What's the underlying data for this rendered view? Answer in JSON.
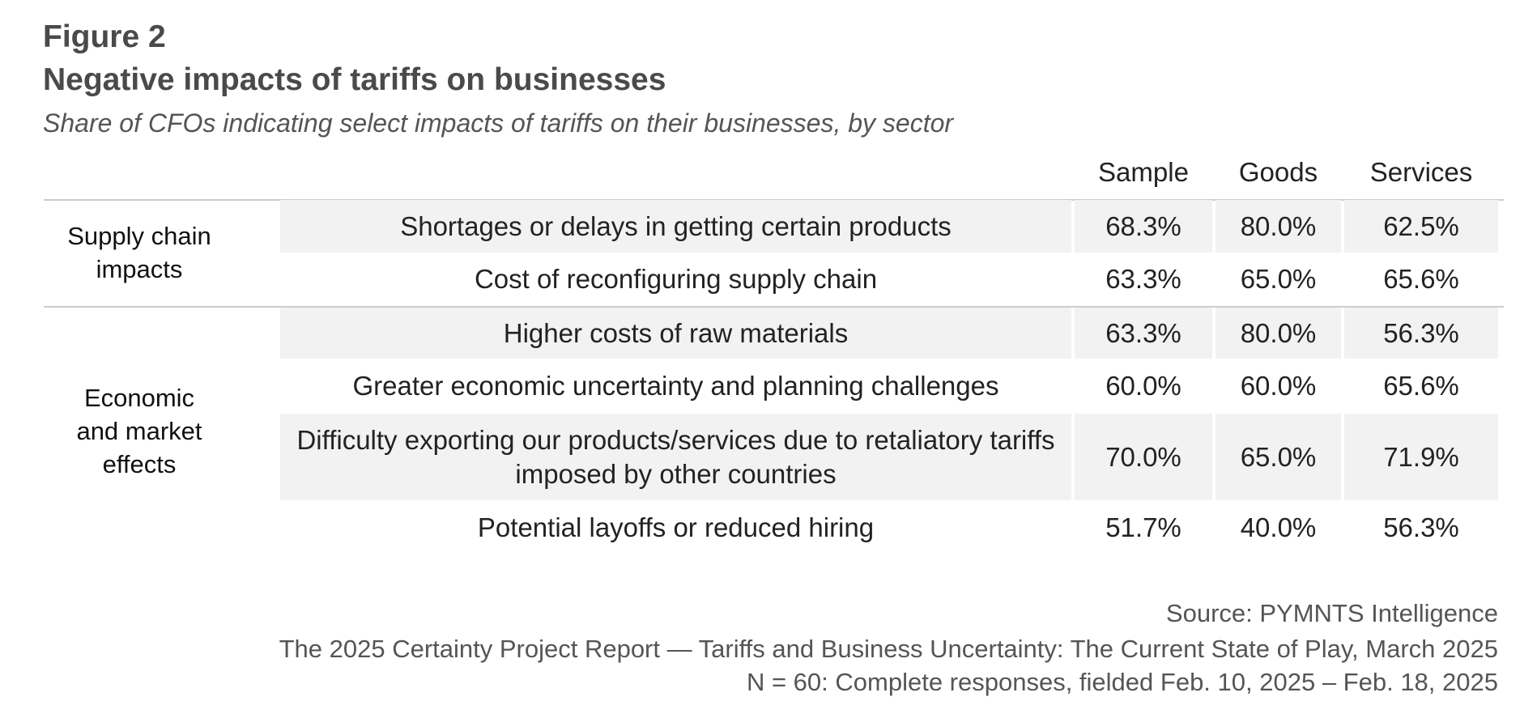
{
  "figure_label": "Figure 2",
  "chart_data": {
    "type": "table",
    "title": "Negative impacts of tariffs on businesses",
    "subtitle": "Share of CFOs indicating select impacts of tariffs on their businesses, by sector",
    "columns": [
      "Sample",
      "Goods",
      "Services"
    ],
    "groups": [
      {
        "label": "Supply chain impacts",
        "rows": [
          {
            "label": "Shortages or delays in getting certain products",
            "values": [
              "68.3%",
              "80.0%",
              "62.5%"
            ]
          },
          {
            "label": "Cost of reconfiguring supply chain",
            "values": [
              "63.3%",
              "65.0%",
              "65.6%"
            ]
          }
        ]
      },
      {
        "label": "Economic and market effects",
        "rows": [
          {
            "label": "Higher costs of raw materials",
            "values": [
              "63.3%",
              "80.0%",
              "56.3%"
            ]
          },
          {
            "label": "Greater economic uncertainty and planning challenges",
            "values": [
              "60.0%",
              "60.0%",
              "65.6%"
            ]
          },
          {
            "label": "Difficulty exporting our products/services due to retaliatory tariffs imposed by other countries",
            "values": [
              "70.0%",
              "65.0%",
              "71.9%"
            ]
          },
          {
            "label": "Potential layoffs or reduced hiring",
            "values": [
              "51.7%",
              "40.0%",
              "56.3%"
            ]
          }
        ]
      }
    ]
  },
  "footer": {
    "source": "Source: PYMNTS Intelligence",
    "report": "The 2025 Certainty Project Report — Tariffs and Business Uncertainty: The Current State of Play, March 2025",
    "sample": "N = 60: Complete responses, fielded Feb. 10, 2025 – Feb. 18, 2025"
  },
  "colors": {
    "shade": "#f2f2f2",
    "rule": "#cccccc",
    "title": "#4a4a4a"
  }
}
